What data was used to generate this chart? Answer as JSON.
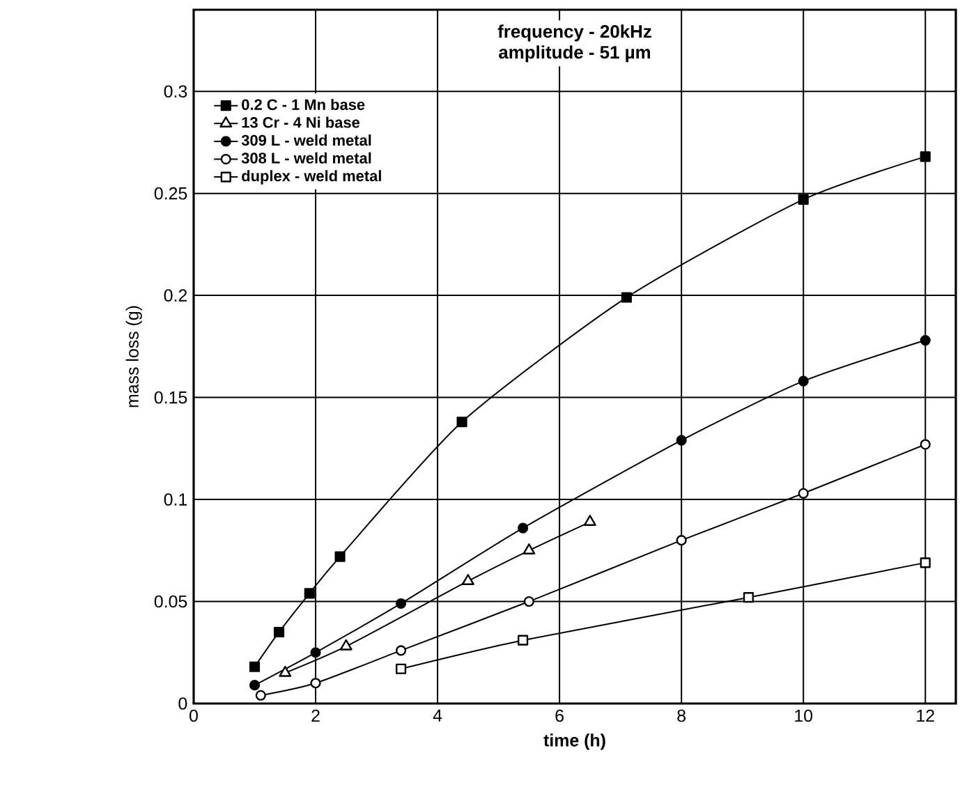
{
  "chart_data": {
    "type": "line",
    "xlabel": "time (h)",
    "ylabel": "mass loss (g)",
    "annotations": [
      "frequency - 20kHz",
      "amplitude - 51 µm"
    ],
    "xlim": [
      0,
      12.5
    ],
    "ylim": [
      0,
      0.34
    ],
    "xticks": [
      0,
      2,
      4,
      6,
      8,
      10,
      12
    ],
    "yticks": [
      0,
      0.05,
      0.1,
      0.15,
      0.2,
      0.25,
      0.3
    ],
    "grid": true,
    "legend": "top left",
    "line_style": "solid",
    "series": [
      {
        "name": "0.2 C - 1 Mn base",
        "color": "#000000",
        "marker": "square",
        "x": [
          1,
          1.4,
          1.9,
          2.4,
          4.4,
          7.1,
          10,
          12
        ],
        "values": [
          0.018,
          0.035,
          0.054,
          0.072,
          0.138,
          0.199,
          0.247,
          0.268
        ]
      },
      {
        "name": "13 Cr - 4 Ni base",
        "color": "#000000",
        "marker": "triangle",
        "x": [
          1.5,
          2.5,
          4.5,
          5.5,
          6.5
        ],
        "values": [
          0.015,
          0.028,
          0.06,
          0.075,
          0.089
        ]
      },
      {
        "name": "309 L - weld metal",
        "color": "#000000",
        "marker": "circle",
        "x": [
          1,
          2,
          3.4,
          5.4,
          8,
          10,
          12
        ],
        "values": [
          0.009,
          0.025,
          0.049,
          0.086,
          0.129,
          0.158,
          0.178
        ]
      },
      {
        "name": "308 L - weld metal",
        "color": "#000000",
        "marker": "circle",
        "x": [
          1.1,
          2,
          3.4,
          5.5,
          8,
          10,
          12
        ],
        "values": [
          0.004,
          0.01,
          0.026,
          0.05,
          0.08,
          0.103,
          0.127
        ]
      },
      {
        "name": "duplex - weld metal",
        "color": "#000000",
        "marker": "square",
        "x": [
          3.4,
          5.4,
          9.1,
          12
        ],
        "values": [
          0.017,
          0.031,
          0.052,
          0.069
        ]
      }
    ]
  }
}
